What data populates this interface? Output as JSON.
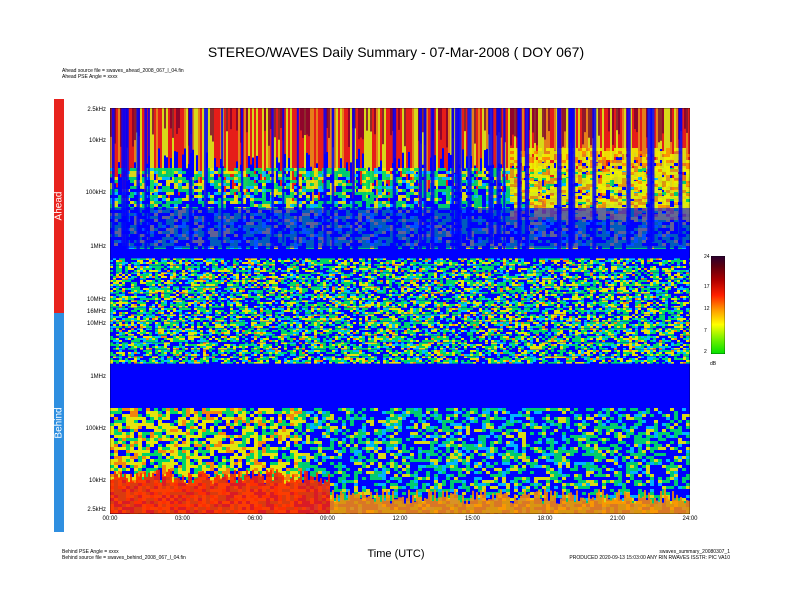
{
  "chart_data": {
    "type": "heatmap",
    "title": "STEREO/WAVES Daily Summary - 07-Mar-2008 ( DOY 067)",
    "xlabel": "Time (UTC)",
    "x_ticks": [
      "00:00",
      "03:00",
      "06:00",
      "09:00",
      "12:00",
      "15:00",
      "18:00",
      "21:00",
      "24:00"
    ],
    "panels": [
      {
        "name": "Ahead",
        "color": "#e8231e",
        "y_ticks": [
          "2.5kHz",
          "10kHz",
          "100kHz",
          "1MHz",
          "10MHz",
          "16MHz"
        ],
        "source_note": "Ahead source file = swaves_ahead_2008_067_l_04.fin",
        "angle_note": "Ahead PSE Angle = xxxx"
      },
      {
        "name": "Behind",
        "color": "#2f8fe0",
        "y_ticks": [
          "10MHz",
          "1MHz",
          "100kHz",
          "10kHz",
          "2.5kHz"
        ],
        "source_note": "Behind source file = swaves_behind_2008_067_l_04.fin",
        "angle_note": "Behind PSE Angle = xxxx"
      }
    ],
    "colorbar": {
      "unit": "dB",
      "ticks": [
        "24",
        "17",
        "12",
        "7",
        "2"
      ],
      "range": [
        2,
        24
      ],
      "colors": [
        "#00e000",
        "#6cf000",
        "#ffff00",
        "#ff9a00",
        "#ff2000",
        "#b00000",
        "#5a0010",
        "#2a0030"
      ]
    }
  },
  "footer": {
    "right_line1": "swaves_summary_20080307_1",
    "right_line2": "PRODUCED 2020-09-13 15:03:00 ANY RIN RWAVES ISSTR: PIC VA10"
  },
  "colors": {
    "background": "#0000ff",
    "low": "#2f8fe0",
    "mid": "#00c8ff",
    "green": "#00e060",
    "yellow": "#f0f000",
    "orange": "#ff8c00",
    "red": "#ff2000",
    "dark": "#7a0030"
  }
}
